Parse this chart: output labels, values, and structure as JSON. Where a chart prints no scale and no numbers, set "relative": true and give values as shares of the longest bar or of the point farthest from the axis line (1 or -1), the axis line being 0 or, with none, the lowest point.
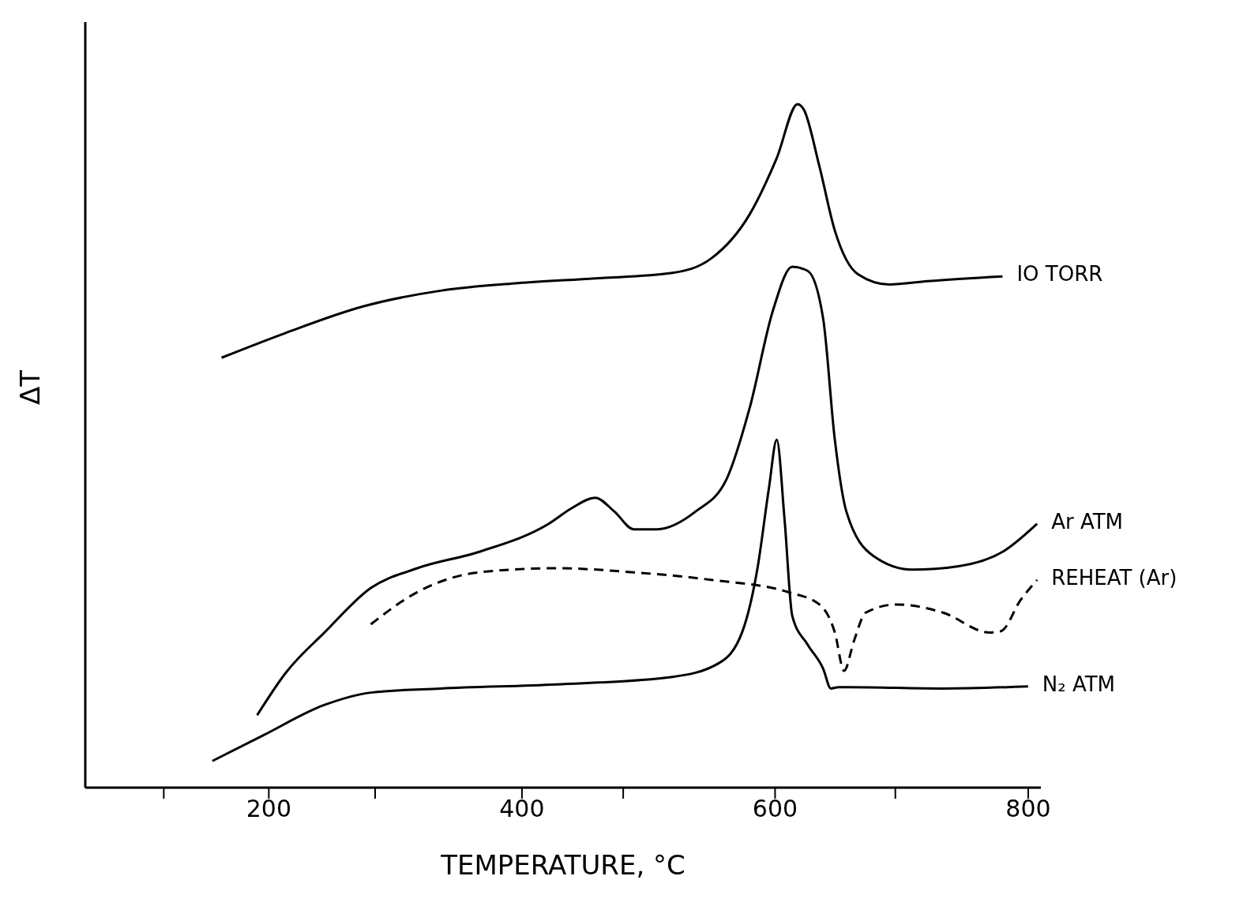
{
  "chart_data": {
    "type": "line",
    "xlabel": "TEMPERATURE,  °C",
    "ylabel": "ΔT",
    "relative": true,
    "xlim": [
      55,
      810
    ],
    "xticks": [
      {
        "value": 117,
        "label": null
      },
      200,
      {
        "value": 284,
        "label": null
      },
      400,
      {
        "value": 480,
        "label": null
      },
      600,
      {
        "value": 695,
        "label": null
      },
      800
    ],
    "marker": "none",
    "series": [
      {
        "name": "IO TORR",
        "color": "#000000",
        "line_style": "solid",
        "x": [
          162.7,
          213,
          274.5,
          335.6,
          396.7,
          457.8,
          518.9,
          549.4,
          580,
          601.3,
          617.8,
          622.7,
          635,
          647.2,
          665.5,
          690,
          720.5,
          779.7
        ],
        "values": [
          0.629,
          0.665,
          0.704,
          0.727,
          0.738,
          0.745,
          0.753,
          0.774,
          0.839,
          0.921,
          1.0,
          0.992,
          0.909,
          0.815,
          0.751,
          0.736,
          0.741,
          0.748
        ]
      },
      {
        "name": "Ar ATM",
        "color": "#000000",
        "line_style": "solid",
        "x": [
          190.8,
          213.4,
          244,
          280.6,
          317.3,
          366.2,
          421.1,
          439.5,
          457.8,
          473,
          488.3,
          506.7,
          537.2,
          561.6,
          580,
          598.3,
          613.6,
          625.8,
          638,
          647.2,
          656.3,
          677.7,
          708.2,
          744.9,
          781.5,
          807
        ],
        "values": [
          0.106,
          0.168,
          0.227,
          0.292,
          0.321,
          0.345,
          0.386,
          0.409,
          0.424,
          0.404,
          0.378,
          0.378,
          0.404,
          0.451,
          0.556,
          0.698,
          0.762,
          0.756,
          0.686,
          0.509,
          0.404,
          0.339,
          0.319,
          0.324,
          0.347,
          0.386
        ]
      },
      {
        "name": "REHEAT (Ar)",
        "color": "#000000",
        "line_style": "dashed",
        "x": [
          280.6,
          317.3,
          366.2,
          427.2,
          488.3,
          549.4,
          610.5,
          635,
          647.2,
          654.5,
          662.4,
          671.6,
          696,
          732.7,
          769.3,
          778.5,
          793.8,
          807
        ],
        "values": [
          0.239,
          0.286,
          0.315,
          0.321,
          0.315,
          0.304,
          0.286,
          0.268,
          0.227,
          0.171,
          0.215,
          0.256,
          0.268,
          0.256,
          0.227,
          0.229,
          0.274,
          0.304
        ]
      },
      {
        "name": "N₂ ATM",
        "color": "#000000",
        "line_style": "solid",
        "x": [
          155.4,
          195.1,
          244,
          280.6,
          335.6,
          427.2,
          518.9,
          555.5,
          573.9,
          586.1,
          595.2,
          601.3,
          607.5,
          613.6,
          625.8,
          638,
          644.1,
          650.2,
          659.4,
          732.7,
          799.9
        ],
        "values": [
          0.039,
          0.076,
          0.121,
          0.139,
          0.145,
          0.151,
          0.162,
          0.182,
          0.227,
          0.321,
          0.439,
          0.509,
          0.392,
          0.251,
          0.209,
          0.174,
          0.145,
          0.147,
          0.147,
          0.145,
          0.148
        ]
      }
    ]
  }
}
